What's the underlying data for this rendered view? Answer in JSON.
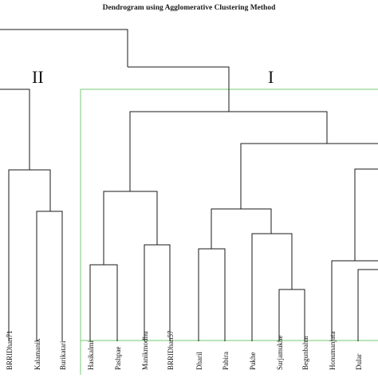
{
  "title": "Dendrogram using Agglomerative Clustering Method",
  "cluster_labels": [
    "II",
    "I"
  ],
  "leaves": [
    "BRRIDhan71",
    "Kalamanik",
    "Burikatari",
    "Hasikalmi",
    "Pashpae",
    "Manikmodhu",
    "BRRIDhan57",
    "Dharil",
    "Pabira",
    "Pukhe",
    "Surjamukhe",
    "Begunbahar",
    "Honumanjata",
    "Dular"
  ],
  "colors": {
    "links": "#1a1a1a",
    "cluster_box": "#8fd38f"
  }
}
